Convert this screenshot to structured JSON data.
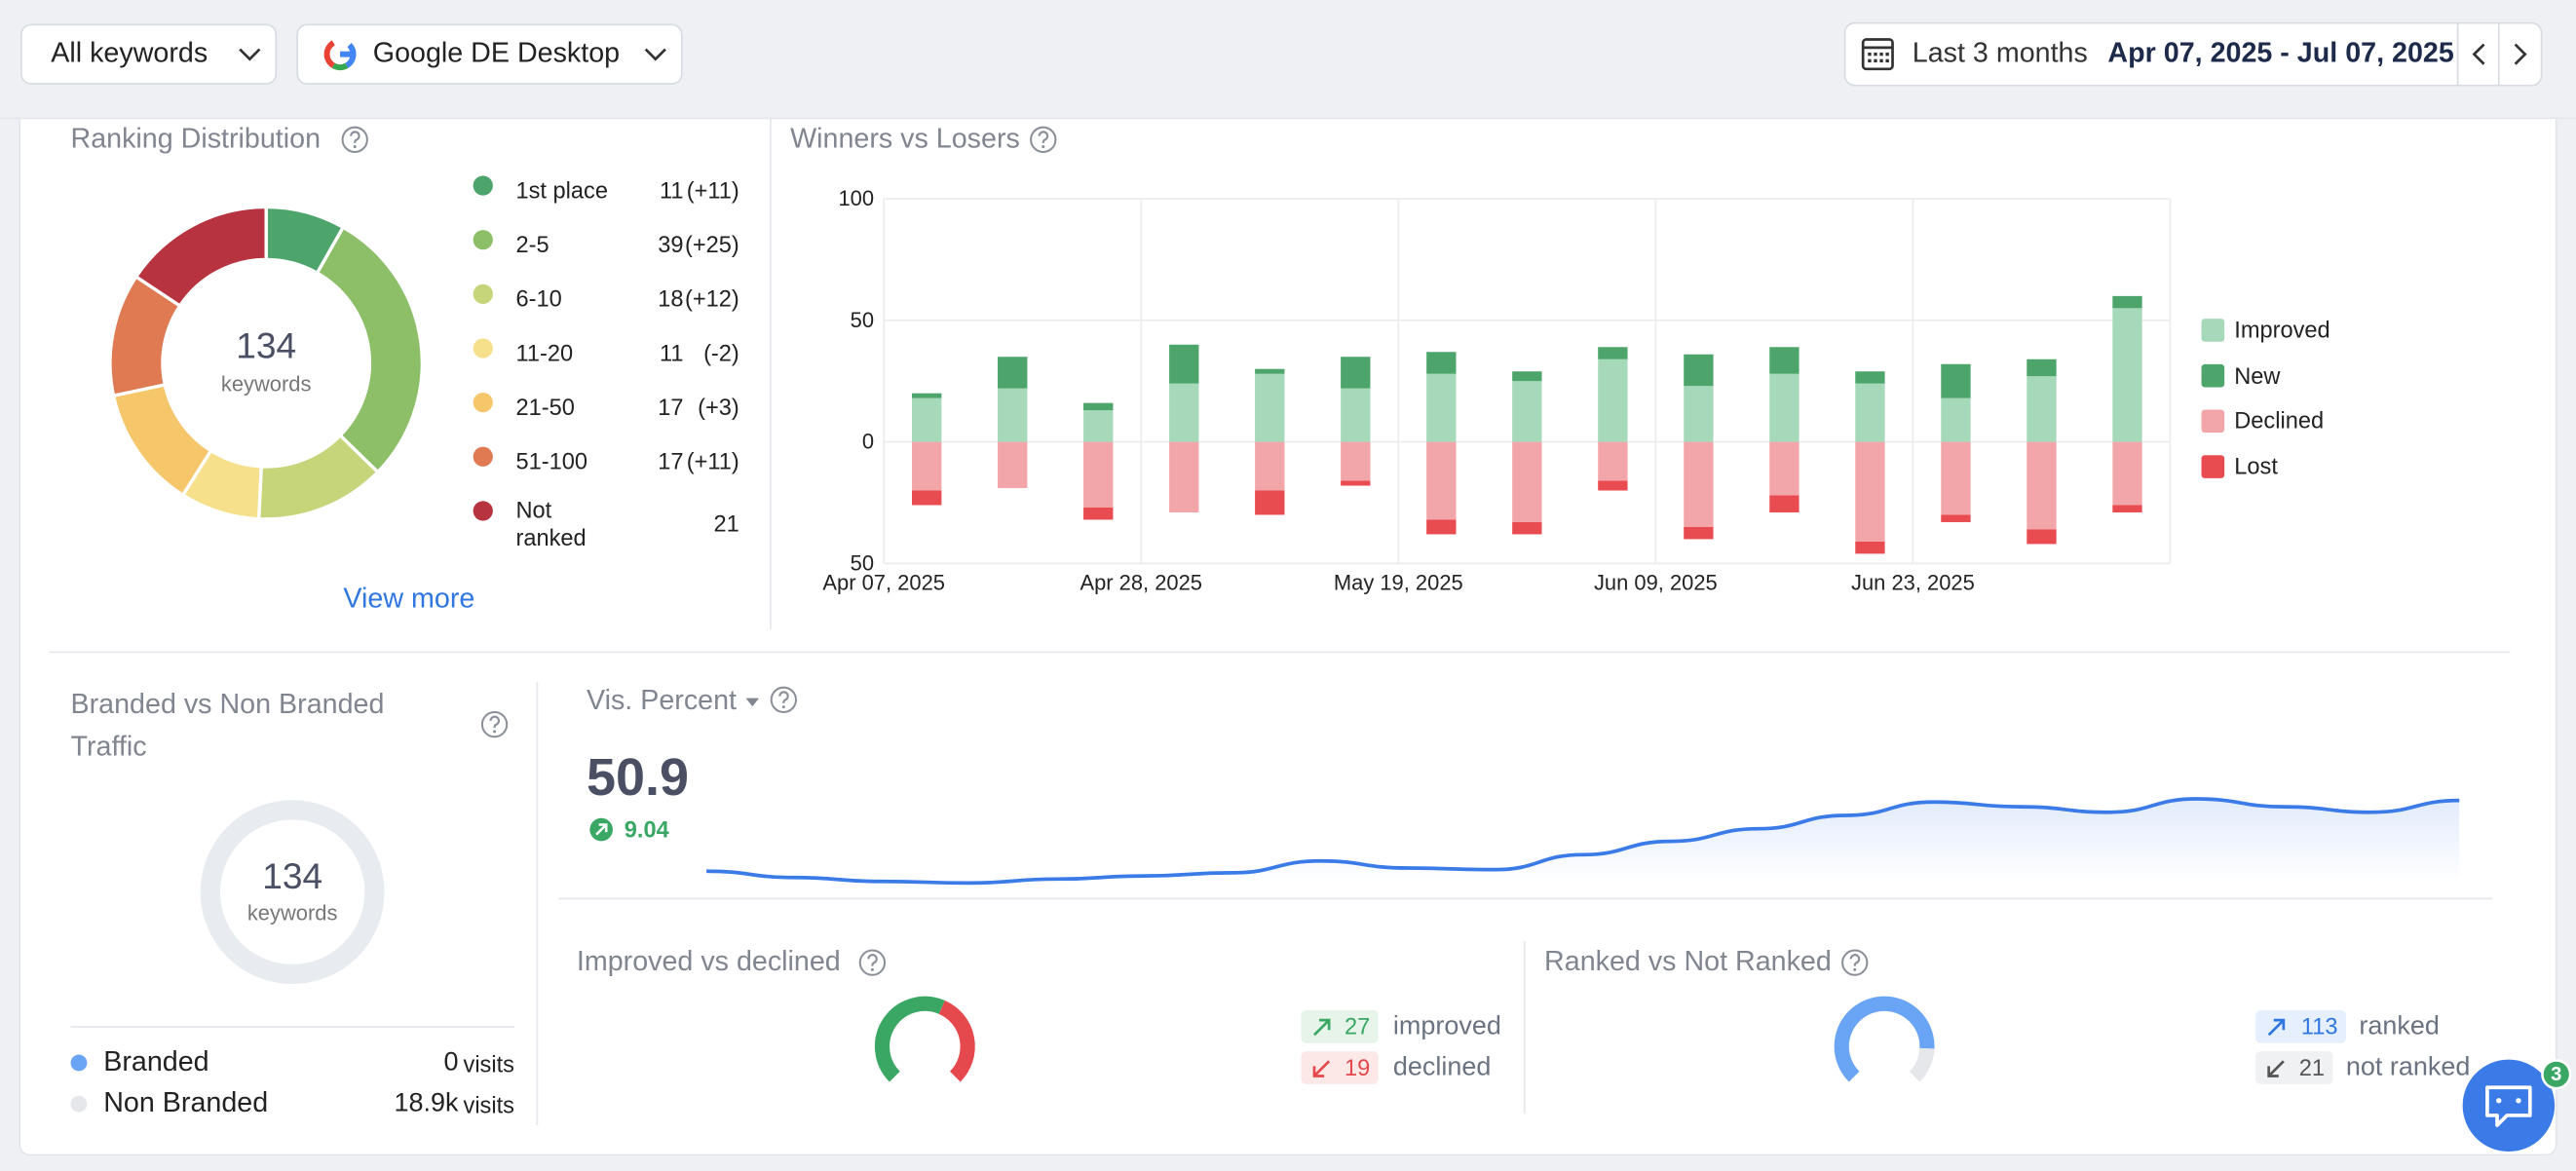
{
  "header": {
    "keyword_filter": "All keywords",
    "search_engine": "Google DE Desktop",
    "period": "Last 3 months",
    "date_range": "Apr 07, 2025 - Jul 07, 2025"
  },
  "ranking_distribution": {
    "title": "Ranking Distribution",
    "total": 134,
    "total_label": "keywords",
    "link": "View more",
    "items": [
      {
        "label": "1st place",
        "count": 11,
        "change": 11,
        "change_label": "(+11)",
        "color": "#4da56c"
      },
      {
        "label": "2-5",
        "count": 39,
        "change": 25,
        "change_label": "(+25)",
        "color": "#8cbf68"
      },
      {
        "label": "6-10",
        "count": 18,
        "change": 12,
        "change_label": "(+12)",
        "color": "#c6d57a"
      },
      {
        "label": "11-20",
        "count": 11,
        "change": -2,
        "change_label": "(-2)",
        "color": "#f6e08c"
      },
      {
        "label": "21-50",
        "count": 17,
        "change": 3,
        "change_label": "(+3)",
        "color": "#f5c66a"
      },
      {
        "label": "51-100",
        "count": 17,
        "change": 11,
        "change_label": "(+11)",
        "color": "#df7a52"
      },
      {
        "label": "Not ranked",
        "count": 21,
        "color": "#b7333f"
      }
    ]
  },
  "chart_data": {
    "type": "bar",
    "title": "Winners vs Losers",
    "stacked": true,
    "grid": true,
    "legend": "right",
    "categories": [
      "Apr 07, 2025",
      null,
      null,
      "Apr 28, 2025",
      null,
      null,
      "May 19, 2025",
      null,
      null,
      "Jun 09, 2025",
      null,
      null,
      "Jun 23, 2025",
      null,
      null
    ],
    "series": [
      {
        "name": "Improved",
        "color": "#a5d9b9",
        "values": [
          18,
          22,
          13,
          24,
          28,
          22,
          28,
          25,
          34,
          23,
          28,
          24,
          18,
          27,
          55
        ]
      },
      {
        "name": "New",
        "color": "#4da56c",
        "values": [
          2,
          13,
          3,
          16,
          2,
          13,
          9,
          4,
          5,
          13,
          11,
          5,
          14,
          7,
          5
        ]
      },
      {
        "name": "Declined",
        "color": "#f3a6a9",
        "values": [
          -20,
          -19,
          -27,
          -29,
          -20,
          -16,
          -32,
          -33,
          -16,
          -35,
          -22,
          -41,
          -30,
          -36,
          -26
        ]
      },
      {
        "name": "Lost",
        "color": "#e84b50",
        "values": [
          -6,
          0,
          -5,
          0,
          -10,
          -2,
          -6,
          -5,
          -4,
          -5,
          -7,
          -5,
          -3,
          -6,
          -3
        ]
      }
    ],
    "ylim": [
      -50,
      100
    ],
    "yticks": [
      100,
      50,
      0,
      {
        "value": -50,
        "label": "50"
      }
    ]
  },
  "branded": {
    "title": "Branded vs Non Branded Traffic",
    "total": 134,
    "total_label": "keywords",
    "unit": "visits",
    "rows": [
      {
        "label": "Branded",
        "visits": 0,
        "color": "#6aa5f5"
      },
      {
        "label": "Non Branded",
        "visits": 18900,
        "visits_label": "18.9k",
        "color": "#e5e7eb"
      }
    ]
  },
  "visibility": {
    "title": "Vis. Percent",
    "value": 50.9,
    "change": 9.04,
    "color": "#3b7be8",
    "ylim": [
      38,
      52
    ],
    "series": [
      41.9,
      41.1,
      40.6,
      40.4,
      40.9,
      41.3,
      41.7,
      43.2,
      42.3,
      42.1,
      44.0,
      45.7,
      47.3,
      49.0,
      50.7,
      50.1,
      49.4,
      51.1,
      50.1,
      49.4,
      50.9
    ]
  },
  "improved_declined": {
    "title": "Improved vs declined",
    "improved": 27,
    "improved_label": "improved",
    "improved_color": "#3aa864",
    "declined": 19,
    "declined_label": "declined",
    "declined_color": "#e5484d"
  },
  "ranked": {
    "title": "Ranked vs Not Ranked",
    "ranked": 113,
    "ranked_label": "ranked",
    "ranked_color": "#6aa5f5",
    "not_ranked": 21,
    "not_ranked_label": "not ranked",
    "not_ranked_color": "#e5e7eb"
  },
  "chat": {
    "badge": 3
  }
}
